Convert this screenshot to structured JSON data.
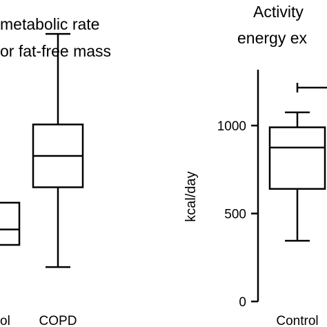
{
  "chart_data": [
    {
      "type": "box",
      "title_lines": [
        "metabolic rate",
        "or fat-free mass"
      ],
      "categories": [
        "ol",
        "COPD"
      ],
      "boxes": [
        {
          "category": "ol",
          "whisker_low": null,
          "q1": 0.0,
          "median": 0.3,
          "q3": 0.82,
          "whisker_high": null
        },
        {
          "category": "COPD",
          "whisker_low": -0.43,
          "q1": 1.12,
          "median": 1.73,
          "q3": 2.34,
          "whisker_high": 4.1
        }
      ]
    },
    {
      "type": "box",
      "title_lines": [
        "Activity",
        "energy ex"
      ],
      "ylabel": "kcal/day",
      "ylim": [
        0,
        1300
      ],
      "yticks": [
        {
          "value": 0,
          "label": "0"
        },
        {
          "value": 500,
          "label": "500"
        },
        {
          "value": 1000,
          "label": "1000"
        }
      ],
      "categories": [
        "Control"
      ],
      "boxes": [
        {
          "category": "Control",
          "whisker_low": 345,
          "q1": 640,
          "median": 875,
          "q3": 990,
          "whisker_high": 1075
        }
      ]
    }
  ]
}
